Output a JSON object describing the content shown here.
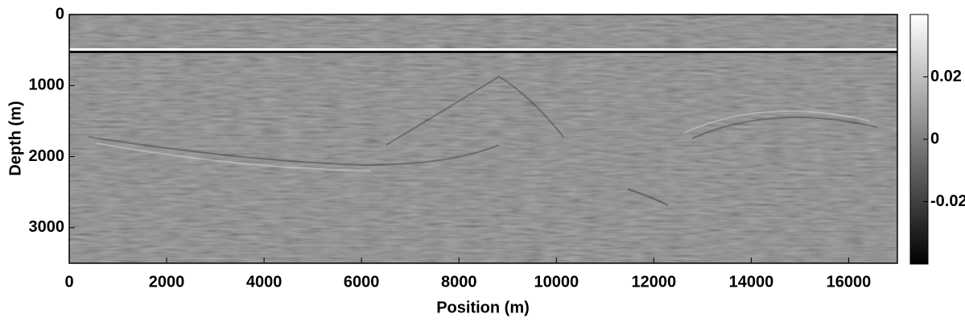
{
  "chart_data": {
    "type": "heatmap",
    "xlabel": "Position (m)",
    "ylabel": "Depth (m)",
    "xlim": [
      0,
      17000
    ],
    "xticks": [
      0,
      2000,
      4000,
      6000,
      8000,
      10000,
      12000,
      14000,
      16000
    ],
    "ylim": [
      0,
      3500
    ],
    "y_reversed": true,
    "yticks": [
      0,
      1000,
      2000,
      3000
    ],
    "colormap": "gray",
    "clim": [
      -0.04,
      0.04
    ],
    "cticks": [
      0.02,
      0,
      -0.02
    ]
  }
}
